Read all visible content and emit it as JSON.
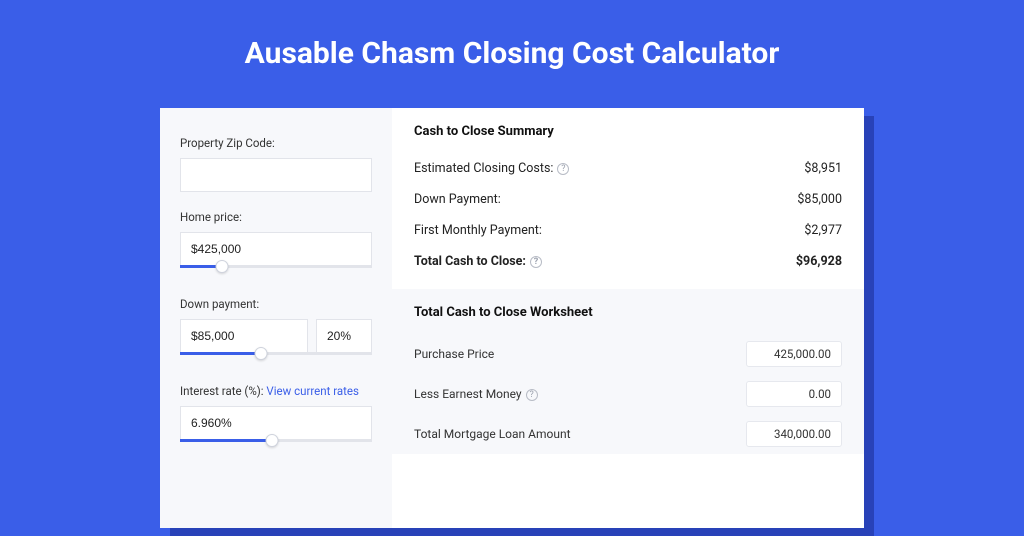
{
  "colors": {
    "page_bg": "#3a5ee8",
    "shadow": "#2842b8",
    "panel_bg": "#f7f8fb",
    "card_bg": "#ffffff",
    "border": "#e2e4ea",
    "text": "#333333",
    "text_strong": "#111111",
    "link": "#3a5ee8"
  },
  "title": "Ausable Chasm Closing Cost Calculator",
  "form": {
    "zip_label": "Property Zip Code:",
    "zip_value": "",
    "home_price_label": "Home price:",
    "home_price_value": "$425,000",
    "home_price_slider_pct": 22,
    "down_payment_label": "Down payment:",
    "down_payment_value": "$85,000",
    "down_payment_pct_value": "20%",
    "down_payment_slider_pct": 42,
    "interest_label_prefix": "Interest rate (%): ",
    "interest_link_text": "View current rates",
    "interest_value": "6.960%",
    "interest_slider_pct": 48
  },
  "summary": {
    "heading": "Cash to Close Summary",
    "rows": [
      {
        "label": "Estimated Closing Costs:",
        "help": true,
        "value": "$8,951",
        "bold": false
      },
      {
        "label": "Down Payment:",
        "help": false,
        "value": "$85,000",
        "bold": false
      },
      {
        "label": "First Monthly Payment:",
        "help": false,
        "value": "$2,977",
        "bold": false
      },
      {
        "label": "Total Cash to Close:",
        "help": true,
        "value": "$96,928",
        "bold": true
      }
    ]
  },
  "worksheet": {
    "heading": "Total Cash to Close Worksheet",
    "rows": [
      {
        "label": "Purchase Price",
        "help": false,
        "value": "425,000.00"
      },
      {
        "label": "Less Earnest Money",
        "help": true,
        "value": "0.00"
      },
      {
        "label": "Total Mortgage Loan Amount",
        "help": false,
        "value": "340,000.00"
      }
    ]
  }
}
